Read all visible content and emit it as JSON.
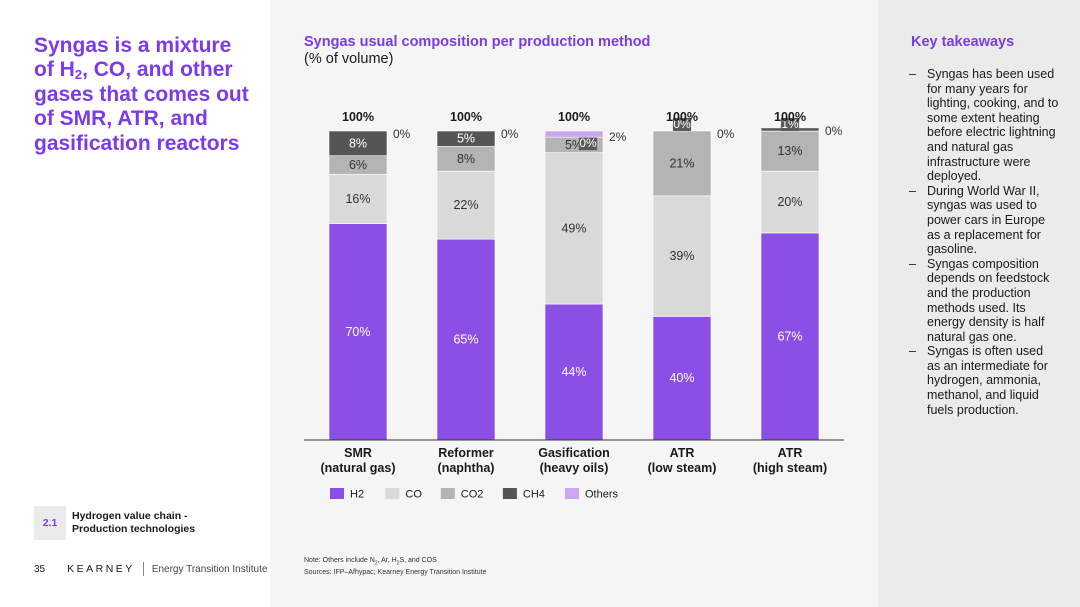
{
  "headline": {
    "part1": "Syngas is a mixture of H",
    "sub": "2",
    "part2": ", CO, and other gases that comes out of SMR, ATR, and gasification reactors"
  },
  "section": {
    "number": "2.1",
    "label": "Hydrogen value chain - Production technologies"
  },
  "footer": {
    "page_number": "35",
    "brand": "KEARNEY",
    "institute": "Energy Transition Institute"
  },
  "chart_title": "Syngas usual composition per production method",
  "chart_subtitle": "(% of volume)",
  "notes": {
    "line1_pre": "Note: Others include N",
    "line1_sub1": "2",
    "line1_mid": ", Ar, H",
    "line1_sub2": "2",
    "line1_post": "S, and COS",
    "line2": "Sources: IFP–Afhypac; Kearney Energy Transition Institute"
  },
  "colors": {
    "H2": "#8c4fe6",
    "CO": "#d9d9d9",
    "CO2": "#b4b4b4",
    "CH4": "#555555",
    "Others": "#c9a8ef",
    "accent": "#7c3aed"
  },
  "chart_data": {
    "type": "bar",
    "stacked": true,
    "categories": [
      [
        "SMR",
        "(natural gas)"
      ],
      [
        "Reformer",
        "(naphtha)"
      ],
      [
        "Gasification",
        "(heavy oils)"
      ],
      [
        "ATR",
        "(low steam)"
      ],
      [
        "ATR",
        "(high steam)"
      ]
    ],
    "totals": [
      "100%",
      "100%",
      "100%",
      "100%",
      "100%"
    ],
    "series": [
      {
        "name": "H2",
        "values": [
          70,
          65,
          44,
          40,
          67
        ]
      },
      {
        "name": "CO",
        "values": [
          16,
          22,
          49,
          39,
          20
        ]
      },
      {
        "name": "CO2",
        "values": [
          6,
          8,
          5,
          21,
          13
        ]
      },
      {
        "name": "CH4",
        "values": [
          8,
          5,
          0,
          0,
          1
        ]
      },
      {
        "name": "Others",
        "values": [
          0,
          0,
          2,
          0,
          0
        ]
      }
    ],
    "ylim": [
      0,
      100
    ],
    "legend_position": "bottom"
  },
  "key_takeaways": {
    "title": "Key takeaways",
    "items": [
      "Syngas has been used for many years for lighting, cooking, and to some extent heating before electric lightning and natural gas infrastructure were deployed.",
      "During World War II, syngas was used to power cars in Europe as a replacement for gasoline.",
      "Syngas composition depends on feedstock and the production methods used. Its energy density is half natural gas one.",
      "Syngas is often used as an intermediate for hydrogen, ammonia, methanol, and liquid fuels production."
    ]
  }
}
